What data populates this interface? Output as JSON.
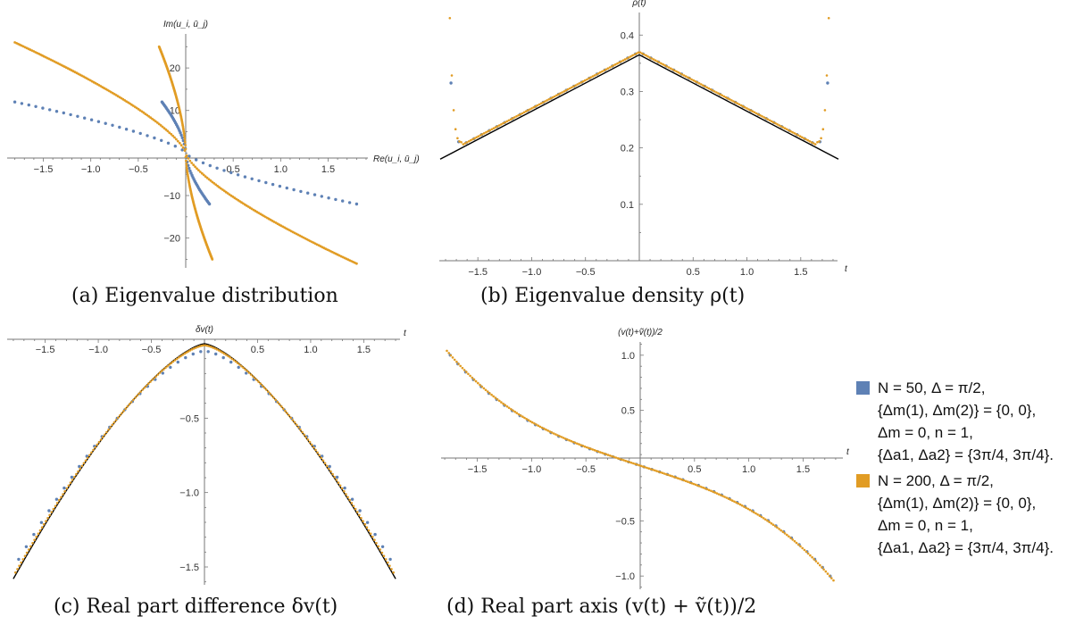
{
  "legend": {
    "entries": [
      {
        "color": "#5e81b5",
        "lines": [
          "N = 50, Δ = π/2,",
          "{Δm(1), Δm(2)} = {0, 0},",
          "Δm = 0, n = 1,",
          "{Δa1, Δa2} = {3π/4, 3π/4}."
        ]
      },
      {
        "color": "#e19c24",
        "lines": [
          "N = 200, Δ = π/2,",
          "{Δm(1), Δm(2)} = {0, 0},",
          "Δm = 0, n = 1,",
          "{Δa1, Δa2} = {3π/4, 3π/4}."
        ]
      }
    ]
  },
  "captions": {
    "a": "(a) Eigenvalue distribution",
    "b": "(b) Eigenvalue density ρ(t)",
    "c": "(c) Real part difference δv(t)",
    "d": "(d) Real part axis (v(t) + ṽ(t))/2"
  },
  "chart_data": [
    {
      "type": "scatter",
      "id": "a",
      "xlabel": "Re(u_i, ū_j)",
      "ylabel": "Im(u_i, ū_j)",
      "xlim": [
        -1.85,
        1.95
      ],
      "ylim": [
        -27,
        28
      ],
      "xticks": [
        -1.5,
        -1.0,
        -0.5,
        0.5,
        1.0,
        1.5
      ],
      "yticks": [
        -20,
        -10,
        10,
        20
      ],
      "grid": false,
      "series": [
        {
          "color": "#5e81b5",
          "description": "N=50 outer branch",
          "x_range": [
            -1.8,
            1.8
          ],
          "y_endpoints": [
            12,
            -12
          ],
          "points": 50,
          "style": "shallow"
        },
        {
          "color": "#5e81b5",
          "description": "N=50 inner branch",
          "x_range": [
            -0.25,
            0.25
          ],
          "y_endpoints": [
            12,
            -12
          ],
          "points": 50,
          "style": "steep"
        },
        {
          "color": "#e19c24",
          "description": "N=200 outer branch",
          "x_range": [
            -1.8,
            1.8
          ],
          "y_endpoints": [
            26,
            -26
          ],
          "points": 200,
          "style": "shallow"
        },
        {
          "color": "#e19c24",
          "description": "N=200 inner branch",
          "x_range": [
            -0.28,
            0.28
          ],
          "y_endpoints": [
            25,
            -25
          ],
          "points": 200,
          "style": "steep"
        }
      ]
    },
    {
      "type": "scatter",
      "id": "b",
      "xlabel": "t",
      "ylabel": "ρ(t)",
      "xlim": [
        -1.85,
        1.85
      ],
      "ylim": [
        0.0,
        0.44
      ],
      "xticks": [
        -1.5,
        -1.0,
        -0.5,
        0.5,
        1.0,
        1.5
      ],
      "yticks": [
        0.1,
        0.2,
        0.3,
        0.4
      ],
      "grid": false,
      "reference_line": {
        "color": "#000000",
        "x": [
          -1.85,
          0,
          1.85
        ],
        "y": [
          0.18,
          0.365,
          0.18
        ]
      },
      "series": [
        {
          "color": "#5e81b5",
          "name_ref": 0,
          "t_range": [
            -1.75,
            1.75
          ],
          "points": 50,
          "peak": 0.37,
          "edge_values": [
            0.31,
            0.29
          ]
        },
        {
          "color": "#e19c24",
          "name_ref": 1,
          "t_range": [
            -1.76,
            1.76
          ],
          "points": 200,
          "peak": 0.365,
          "edge_values": [
            0.43,
            0.42
          ]
        }
      ]
    },
    {
      "type": "scatter",
      "id": "c",
      "xlabel": "t",
      "ylabel": "δv(t)",
      "xlim": [
        -1.85,
        1.85
      ],
      "ylim": [
        -1.62,
        0.03
      ],
      "xticks": [
        -1.5,
        -1.0,
        -0.5,
        0.5,
        1.0,
        1.5
      ],
      "yticks": [
        -1.5,
        -1.0,
        -0.5
      ],
      "grid": false,
      "reference_line": {
        "color": "#000000",
        "t_range": [
          -1.8,
          1.8
        ],
        "endpoint": -1.58
      },
      "series": [
        {
          "color": "#5e81b5",
          "t_range": [
            -1.75,
            1.75
          ],
          "points": 50,
          "peak": -0.05,
          "endpoint": -1.5
        },
        {
          "color": "#e19c24",
          "t_range": [
            -1.78,
            1.78
          ],
          "points": 200,
          "peak": -0.01,
          "endpoint": -1.57
        }
      ]
    },
    {
      "type": "scatter",
      "id": "d",
      "xlabel": "t",
      "ylabel": "(v(t)+ṽ(t))/2",
      "xlim": [
        -1.85,
        1.85
      ],
      "ylim": [
        -1.12,
        1.12
      ],
      "xticks": [
        -1.5,
        -1.0,
        -0.5,
        0.5,
        1.0,
        1.5
      ],
      "yticks": [
        -1.0,
        -0.5,
        0.5,
        1.0
      ],
      "grid": false,
      "series": [
        {
          "color": "#5e81b5",
          "t_range": [
            -1.75,
            1.75
          ],
          "points": 50,
          "endpoint_values": [
            1.0,
            -1.0
          ]
        },
        {
          "color": "#e19c24",
          "t_range": [
            -1.78,
            1.78
          ],
          "points": 200,
          "endpoint_values": [
            1.04,
            -1.04
          ]
        }
      ]
    }
  ]
}
